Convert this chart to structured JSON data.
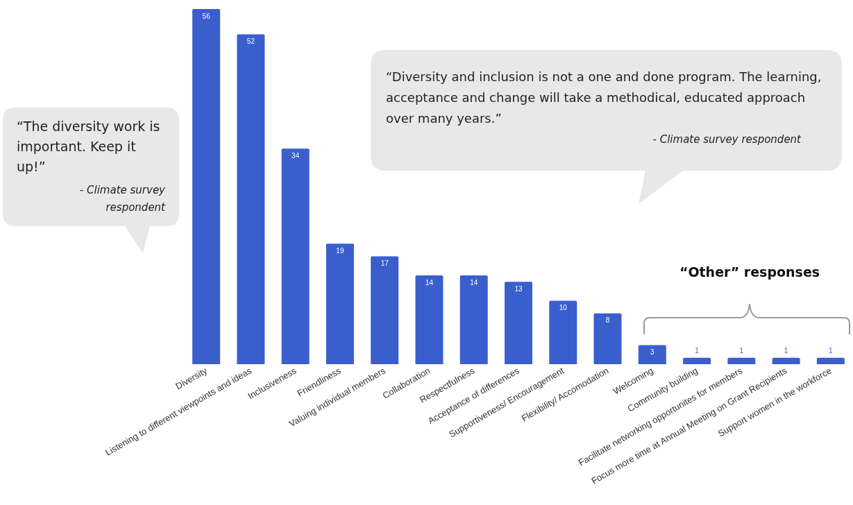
{
  "chart_data": {
    "type": "bar",
    "categories": [
      "Diversity",
      "Listening to different viewpoints and ideas",
      "Inclusiveness",
      "Friendliness",
      "Valuing individual members",
      "Collaboration",
      "Respectfulness",
      "Acceptance of differences",
      "Supportiveness/ Encouragement",
      "Flexibility/ Accomodation",
      "Welcoming",
      "Community building",
      "Facilitate networking opportunites for members",
      "Focus more time at Annual Meeting on Grant Recipients",
      "Support women in the workforce"
    ],
    "values": [
      56,
      52,
      34,
      19,
      17,
      14,
      14,
      13,
      10,
      8,
      3,
      1,
      1,
      1,
      1
    ],
    "color": "#3a5fcd",
    "data_labels": true,
    "grid": false,
    "annotations": [
      "“The diversity work is important. Keep it up!”",
      "- Climate survey respondent",
      "“Diversity and inclusion is not a one and done program. The learning, acceptance and change will take a methodical, educated approach over many years.”",
      "- Climate survey respondent",
      "“Other” responses"
    ]
  }
}
